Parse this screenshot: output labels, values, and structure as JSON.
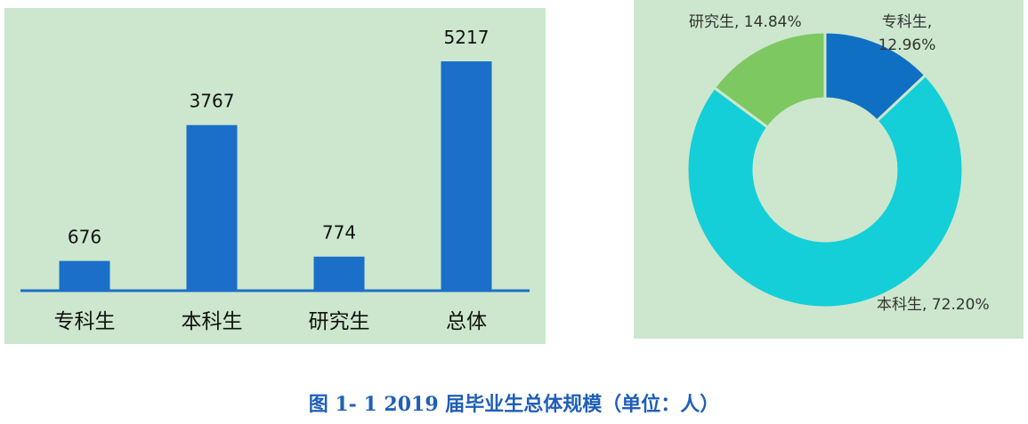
{
  "colors": {
    "panel_bg": "#cce7cd",
    "bar": "#1b6fc8",
    "axis": "#1b6fc8",
    "caption": "#1f5fb8",
    "slice_border": "#cce7cd"
  },
  "caption": "图 1- 1 2019 届毕业生总体规模（单位：人）",
  "chart_data": [
    {
      "type": "bar",
      "categories": [
        "专科生",
        "本科生",
        "研究生",
        "总体"
      ],
      "values": [
        676,
        3767,
        774,
        5217
      ],
      "value_labels": [
        "676",
        "3767",
        "774",
        "5217"
      ],
      "ylim": [
        0,
        5500
      ],
      "grid": false,
      "legend": "none"
    },
    {
      "type": "pie",
      "variant": "donut",
      "slices": [
        {
          "label": "专科生",
          "value": 12.96,
          "text": "专科生, 12.96%",
          "color": "#0f6fc2"
        },
        {
          "label": "本科生",
          "value": 72.2,
          "text": "本科生, 72.20%",
          "color": "#14cfd8"
        },
        {
          "label": "研究生",
          "value": 14.84,
          "text": "研究生, 14.84%",
          "color": "#7ec862"
        }
      ],
      "legend": "none"
    }
  ]
}
